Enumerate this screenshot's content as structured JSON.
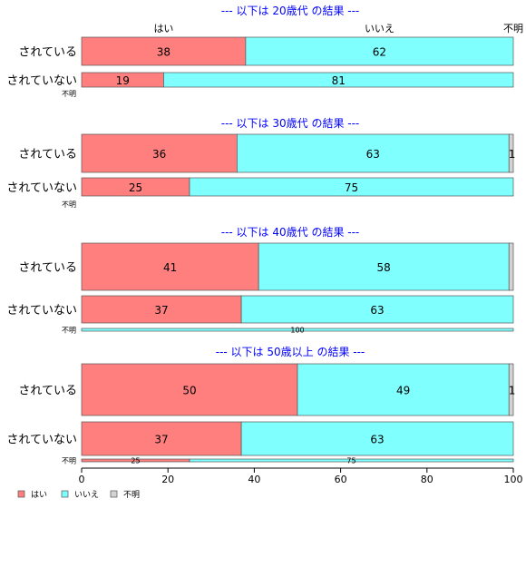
{
  "colors": {
    "yes": "#ff7f7f",
    "no": "#80ffff",
    "unknown": "#d3d3d3",
    "title": "#0000ff",
    "text": "#000000",
    "border": "#555555"
  },
  "column_labels": [
    "はい",
    "いいえ",
    "不明"
  ],
  "legend": [
    {
      "label": "はい",
      "color": "#ff7f7f"
    },
    {
      "label": "いいえ",
      "color": "#80ffff"
    },
    {
      "label": "不明",
      "color": "#d3d3d3"
    }
  ],
  "chart_data": {
    "type": "bar",
    "orientation": "horizontal",
    "stacked": "percent",
    "xlim": [
      0,
      100
    ],
    "xticks": [
      0,
      20,
      40,
      60,
      80,
      100
    ],
    "series_names": [
      "はい",
      "いいえ",
      "不明"
    ],
    "panels": [
      {
        "title": "--- 以下は 20歳代 の結果 ---",
        "rows": [
          {
            "label": "されている",
            "values": [
              38,
              62,
              0
            ],
            "labels": [
              "38",
              "62",
              ""
            ]
          },
          {
            "label": "されていない",
            "values": [
              19,
              81,
              0
            ],
            "labels": [
              "19",
              "81",
              ""
            ]
          },
          {
            "label": "不明",
            "values": [
              0,
              0,
              0
            ],
            "labels": [
              "",
              "",
              ""
            ]
          }
        ]
      },
      {
        "title": "--- 以下は 30歳代 の結果 ---",
        "rows": [
          {
            "label": "されている",
            "values": [
              36,
              63,
              1
            ],
            "labels": [
              "36",
              "63",
              "1"
            ]
          },
          {
            "label": "されていない",
            "values": [
              25,
              75,
              0
            ],
            "labels": [
              "25",
              "75",
              ""
            ]
          },
          {
            "label": "不明",
            "values": [
              0,
              0,
              0
            ],
            "labels": [
              "",
              "",
              ""
            ]
          }
        ]
      },
      {
        "title": "--- 以下は 40歳代 の結果 ---",
        "rows": [
          {
            "label": "されている",
            "values": [
              41,
              58,
              1
            ],
            "labels": [
              "41",
              "58",
              ""
            ]
          },
          {
            "label": "されていない",
            "values": [
              37,
              63,
              0
            ],
            "labels": [
              "37",
              "63",
              ""
            ]
          },
          {
            "label": "不明",
            "values": [
              0,
              100,
              0
            ],
            "labels": [
              "",
              "100",
              ""
            ]
          }
        ]
      },
      {
        "title": "--- 以下は 50歳以上 の結果 ---",
        "rows": [
          {
            "label": "されている",
            "values": [
              50,
              49,
              1
            ],
            "labels": [
              "50",
              "49",
              "1"
            ]
          },
          {
            "label": "されていない",
            "values": [
              37,
              63,
              0
            ],
            "labels": [
              "37",
              "63",
              ""
            ]
          },
          {
            "label": "不明",
            "values": [
              25,
              75,
              0
            ],
            "labels": [
              "25",
              "75",
              ""
            ]
          }
        ]
      }
    ]
  }
}
